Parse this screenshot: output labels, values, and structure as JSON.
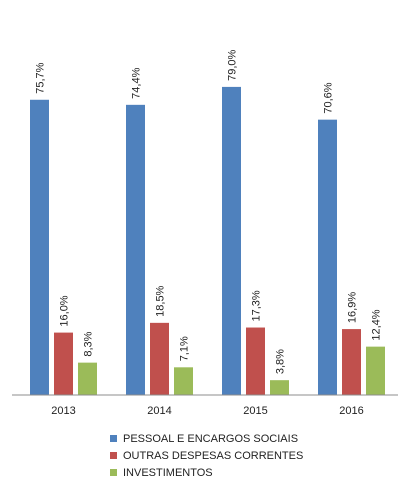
{
  "chart_data": {
    "type": "bar",
    "categories": [
      "2013",
      "2014",
      "2015",
      "2016"
    ],
    "series": [
      {
        "name": "PESSOAL E ENCARGOS SOCIAIS",
        "values": [
          75.7,
          74.4,
          79.0,
          70.6
        ],
        "labels": [
          "75,7%",
          "74,4%",
          "79,0%",
          "70,6%"
        ],
        "color": "#4F81BD"
      },
      {
        "name": "OUTRAS DESPESAS CORRENTES",
        "values": [
          16.0,
          18.5,
          17.3,
          16.9
        ],
        "labels": [
          "16,0%",
          "18,5%",
          "17,3%",
          "16,9%"
        ],
        "color": "#C0504D"
      },
      {
        "name": "INVESTIMENTOS",
        "values": [
          8.3,
          7.1,
          3.8,
          12.4
        ],
        "labels": [
          "8,3%",
          "7,1%",
          "3,8%",
          "12,4%"
        ],
        "color": "#9BBB59"
      }
    ],
    "title": "",
    "xlabel": "",
    "ylabel": "",
    "ylim": [
      0,
      100
    ],
    "grid": false,
    "legend_position": "bottom"
  }
}
